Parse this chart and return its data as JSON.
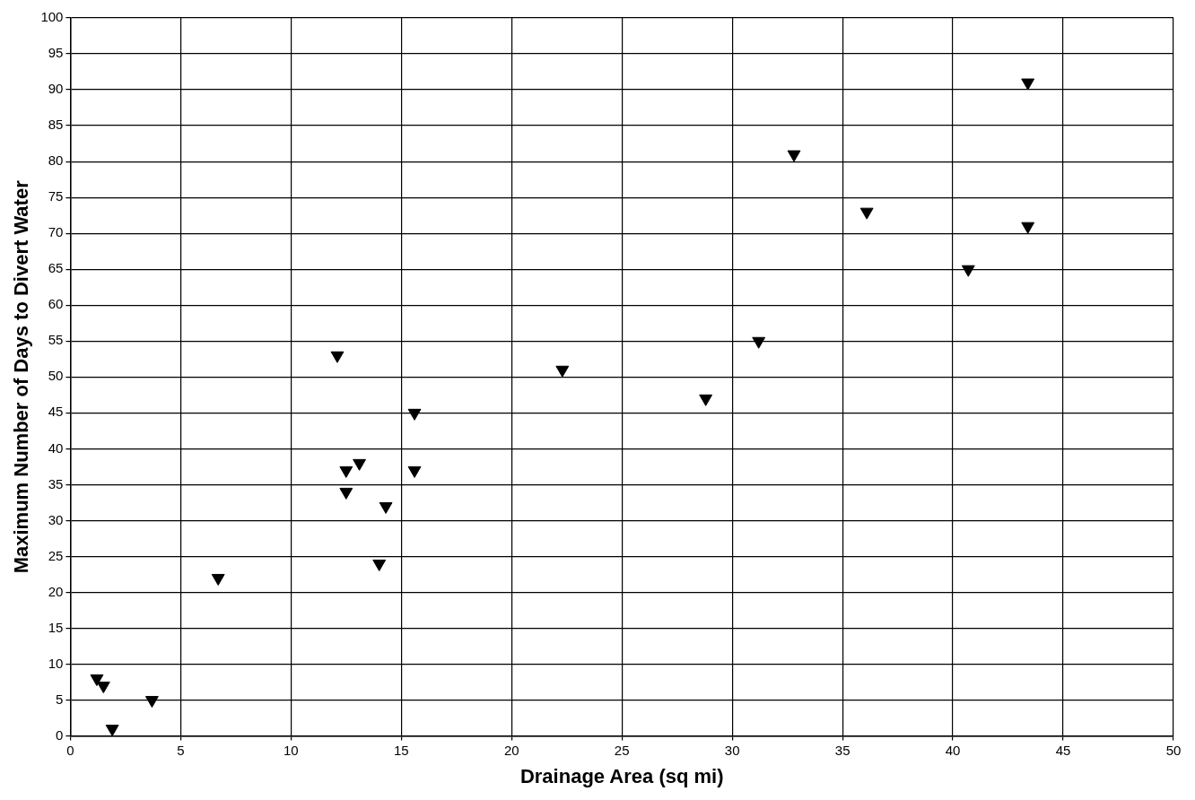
{
  "chart_data": {
    "type": "scatter",
    "xlabel": "Drainage Area (sq mi)",
    "ylabel": "Maximum Number of Days to Divert Water",
    "x": [
      1.2,
      1.5,
      1.9,
      3.7,
      6.7,
      12.1,
      12.5,
      12.5,
      13.1,
      14.0,
      14.3,
      15.6,
      15.6,
      22.3,
      28.8,
      31.2,
      32.8,
      36.1,
      40.7,
      43.4,
      43.4
    ],
    "series": [
      {
        "color": "#000000",
        "values": [
          8,
          7,
          1,
          5,
          22,
          53,
          37,
          34,
          38,
          24,
          32,
          45,
          37,
          51,
          47,
          55,
          81,
          73,
          65,
          91,
          71
        ]
      }
    ],
    "xlim": [
      0,
      50
    ],
    "xticks": [
      0,
      5,
      10,
      15,
      20,
      25,
      30,
      35,
      40,
      45,
      50
    ],
    "ylim": [
      0,
      100
    ],
    "yticks": [
      0,
      5,
      10,
      15,
      20,
      25,
      30,
      35,
      40,
      45,
      50,
      55,
      60,
      65,
      70,
      75,
      80,
      85,
      90,
      95,
      100
    ],
    "grid": true,
    "legend": false,
    "marker": "triangle"
  }
}
